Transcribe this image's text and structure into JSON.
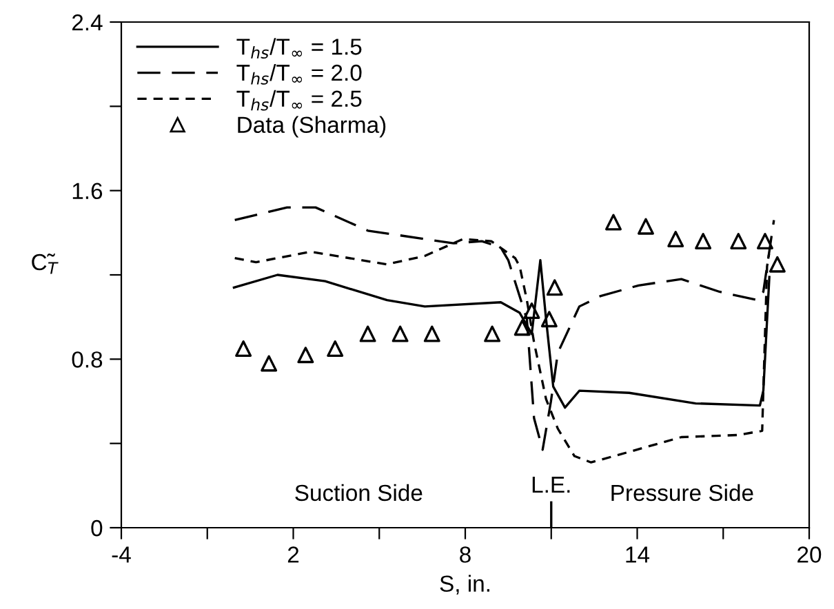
{
  "chart_data": {
    "type": "line",
    "xlabel": "S, in.",
    "ylabel": "C̃$_{T}$",
    "xlim": [
      -4,
      20
    ],
    "xticks": [
      -4,
      {
        "value": -1,
        "label": null
      },
      2,
      {
        "value": 5,
        "label": null
      },
      8,
      {
        "value": 11,
        "label": null
      },
      14,
      {
        "value": 17,
        "label": null
      },
      20
    ],
    "ylim": [
      0,
      2.4
    ],
    "yticks": [
      0,
      {
        "value": 0.4,
        "label": null
      },
      0.8,
      {
        "value": 1.2,
        "label": null
      },
      1.6,
      {
        "value": 2.0,
        "label": null
      },
      2.4
    ],
    "grid": false,
    "legend": "top left",
    "series": [
      {
        "name": "T$_{hs}$/T$_{∞}$ = 1.5",
        "color": "#000000",
        "line_style": "solid",
        "marker": "none",
        "x": [
          -0.07,
          1.45,
          3.11,
          5.27,
          6.59,
          9.24,
          9.9,
          10.32,
          10.62,
          10.82,
          11.07,
          11.48,
          11.98,
          13.72,
          16.04,
          18.28,
          18.4,
          18.61
        ],
        "values": [
          1.14,
          1.2,
          1.17,
          1.08,
          1.05,
          1.07,
          1.02,
          0.92,
          1.27,
          0.99,
          0.67,
          0.57,
          0.65,
          0.64,
          0.59,
          0.58,
          0.65,
          1.19
        ]
      },
      {
        "name": "T$_{hs}$/T$_{∞}$ = 2.0",
        "color": "#000000",
        "line_style": "longdash",
        "marker": "none",
        "x": [
          -0.04,
          1.78,
          2.78,
          4.6,
          7.59,
          8.58,
          9.24,
          9.5,
          10.15,
          10.4,
          10.7,
          10.99,
          11.23,
          11.98,
          12.73,
          14.05,
          15.54,
          16.87,
          18.2,
          18.4,
          18.77
        ],
        "values": [
          1.46,
          1.52,
          1.52,
          1.41,
          1.35,
          1.36,
          1.33,
          1.27,
          0.99,
          0.52,
          0.37,
          0.6,
          0.83,
          1.05,
          1.1,
          1.15,
          1.18,
          1.12,
          1.08,
          1.12,
          1.46
        ]
      },
      {
        "name": "T$_{hs}$/T$_{∞}$ = 2.5",
        "color": "#000000",
        "line_style": "dashed",
        "marker": "none",
        "x": [
          -0.04,
          0.7,
          2.61,
          5.26,
          6.59,
          7.92,
          8.91,
          9.74,
          9.9,
          10.15,
          10.4,
          10.82,
          11.23,
          11.81,
          12.39,
          13.72,
          15.54,
          17.53,
          18.36,
          18.4,
          18.53,
          18.6
        ],
        "values": [
          1.28,
          1.26,
          1.31,
          1.25,
          1.29,
          1.37,
          1.36,
          1.28,
          1.24,
          1.08,
          0.88,
          0.61,
          0.47,
          0.34,
          0.31,
          0.36,
          0.43,
          0.44,
          0.46,
          0.65,
          1.24,
          1.3
        ]
      },
      {
        "name": "Data (Sharma)",
        "type": "scatter",
        "color": "#000000",
        "marker": "triangle",
        "x": [
          0.26,
          1.15,
          2.43,
          3.46,
          4.6,
          5.73,
          6.84,
          8.94,
          9.99,
          10.32,
          10.93,
          11.12,
          13.17,
          14.3,
          15.34,
          16.3,
          17.53,
          18.46,
          18.89
        ],
        "values": [
          0.85,
          0.78,
          0.82,
          0.85,
          0.92,
          0.92,
          0.92,
          0.92,
          0.95,
          1.03,
          0.99,
          1.14,
          1.45,
          1.43,
          1.37,
          1.36,
          1.36,
          1.36,
          1.25
        ]
      }
    ],
    "ref_lines": [
      {
        "axis": "x",
        "value": 11,
        "label": "L.E.",
        "color": "#000000",
        "line_style": "solid"
      }
    ],
    "annotations": [
      "Suction Side",
      "Pressure Side"
    ]
  }
}
